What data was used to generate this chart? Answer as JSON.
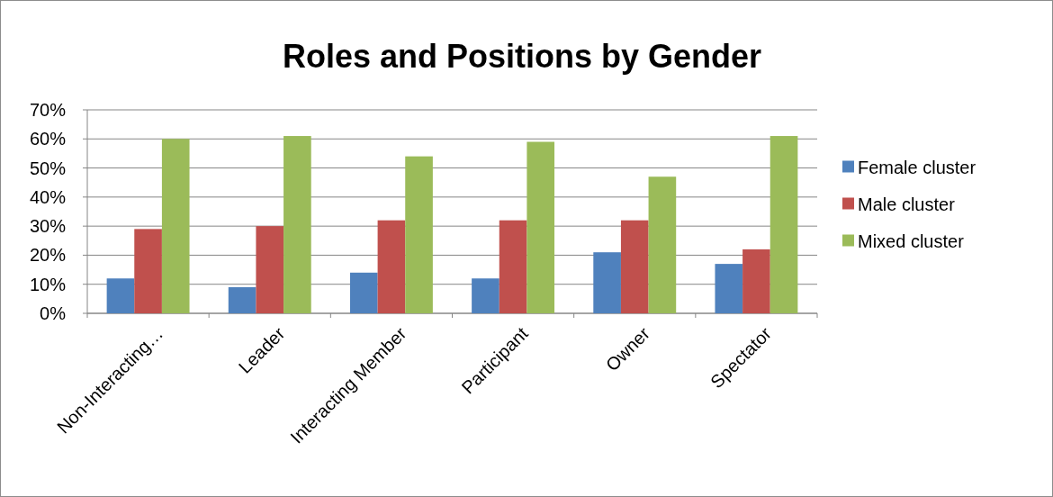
{
  "chart_data": {
    "type": "bar",
    "title": "Roles and Positions by Gender",
    "categories": [
      "Non-Interacting…",
      "Leader",
      "Interacting Member",
      "Participant",
      "Owner",
      "Spectator"
    ],
    "series": [
      {
        "name": "Female cluster",
        "color": "#4f81bd",
        "values": [
          12,
          9,
          14,
          12,
          21,
          17
        ]
      },
      {
        "name": "Male cluster",
        "color": "#c0504d",
        "values": [
          29,
          30,
          32,
          32,
          32,
          22
        ]
      },
      {
        "name": "Mixed cluster",
        "color": "#9bbb59",
        "values": [
          60,
          61,
          54,
          59,
          47,
          61
        ]
      }
    ],
    "ylim": [
      0,
      70
    ],
    "yticks": [
      {
        "value": 0,
        "label": "0%"
      },
      {
        "value": 10,
        "label": "10%"
      },
      {
        "value": 20,
        "label": "20%"
      },
      {
        "value": 30,
        "label": "30%"
      },
      {
        "value": 40,
        "label": "40%"
      },
      {
        "value": 50,
        "label": "50%"
      },
      {
        "value": 60,
        "label": "60%"
      },
      {
        "value": 70,
        "label": "70%"
      }
    ],
    "grid": "y",
    "legend": "right"
  }
}
